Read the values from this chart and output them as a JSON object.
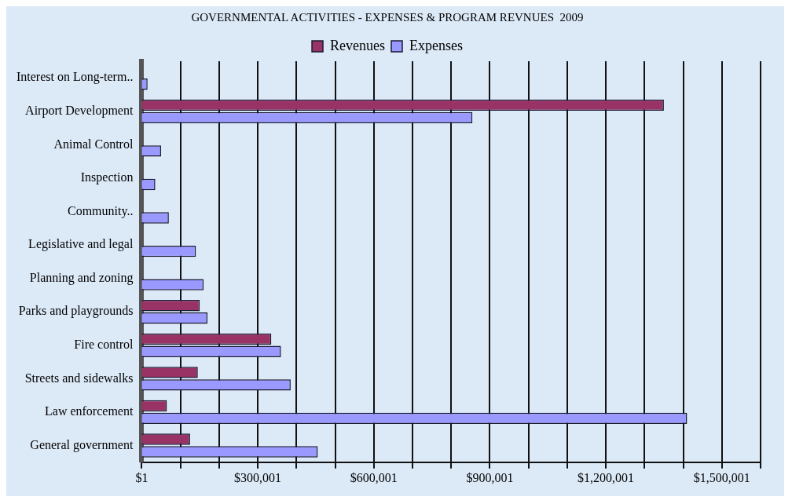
{
  "chart_data": {
    "type": "bar",
    "orientation": "horizontal",
    "title": "GOVERNMENTAL ACTIVITIES - EXPENSES & PROGRAM REVNUES  2009",
    "categories": [
      "Interest on Long-term..",
      "Airport Development",
      "Animal Control",
      "Inspection",
      "Community..",
      "Legislative and legal",
      "Planning and zoning",
      "Parks and playgrounds",
      "Fire control",
      "Streets and sidewalks",
      "Law enforcement",
      "General government"
    ],
    "series": [
      {
        "name": "Revenues",
        "color": "#993366",
        "values": [
          null,
          1350000,
          null,
          null,
          null,
          null,
          null,
          150000,
          335000,
          145000,
          65000,
          125000
        ]
      },
      {
        "name": "Expenses",
        "color": "#9999ff",
        "values": [
          15000,
          855000,
          50000,
          35000,
          70000,
          140000,
          160000,
          170000,
          360000,
          385000,
          1410000,
          455000
        ]
      }
    ],
    "xlim": [
      1,
      1600001
    ],
    "xticks": [
      {
        "value": 1,
        "label": "$1"
      },
      {
        "value": 100001,
        "label": null
      },
      {
        "value": 200001,
        "label": null
      },
      {
        "value": 300001,
        "label": "$300,001"
      },
      {
        "value": 400001,
        "label": null
      },
      {
        "value": 500001,
        "label": null
      },
      {
        "value": 600001,
        "label": "$600,001"
      },
      {
        "value": 700001,
        "label": null
      },
      {
        "value": 800001,
        "label": null
      },
      {
        "value": 900001,
        "label": "$900,001"
      },
      {
        "value": 1000001,
        "label": null
      },
      {
        "value": 1100001,
        "label": null
      },
      {
        "value": 1200001,
        "label": "$1,200,001"
      },
      {
        "value": 1300001,
        "label": null
      },
      {
        "value": 1400001,
        "label": null
      },
      {
        "value": 1500001,
        "label": "$1,500,001"
      },
      {
        "value": 1600001,
        "label": null
      }
    ],
    "grid": "x",
    "legend": "top"
  }
}
